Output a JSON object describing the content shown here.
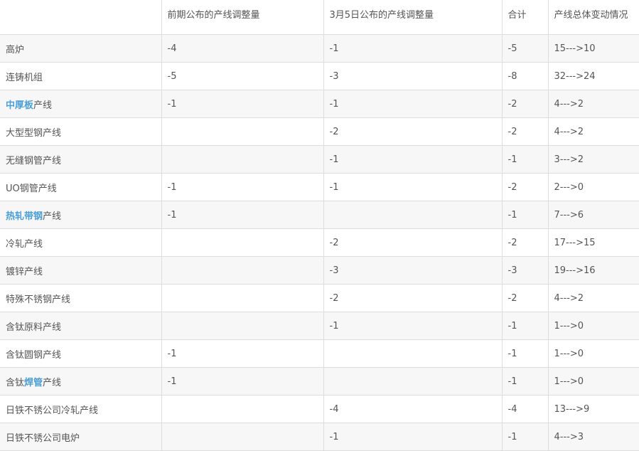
{
  "headers": [
    "",
    "前期公布的产线调整量",
    "3月5日公布的产线调整量",
    "合计",
    "产线总体变动情况"
  ],
  "rows": [
    {
      "pre": "",
      "link": "",
      "post": "高炉",
      "earlier": "-4",
      "mar5": "-1",
      "total": "-5",
      "change": "15--->10"
    },
    {
      "pre": "",
      "link": "",
      "post": "连铸机组",
      "earlier": "-5",
      "mar5": "-3",
      "total": "-8",
      "change": "32--->24"
    },
    {
      "pre": "",
      "link": "中厚板",
      "post": "产线",
      "earlier": "-1",
      "mar5": "-1",
      "total": "-2",
      "change": "4--->2"
    },
    {
      "pre": "",
      "link": "",
      "post": "大型型钢产线",
      "earlier": "",
      "mar5": "-2",
      "total": "-2",
      "change": "4--->2"
    },
    {
      "pre": "",
      "link": "",
      "post": "无缝钢管产线",
      "earlier": "",
      "mar5": "-1",
      "total": "-1",
      "change": "3--->2"
    },
    {
      "pre": "",
      "link": "",
      "post": "UO钢管产线",
      "earlier": "-1",
      "mar5": "-1",
      "total": "-2",
      "change": "2--->0"
    },
    {
      "pre": "",
      "link": "热轧带钢",
      "post": "产线",
      "earlier": "-1",
      "mar5": "",
      "total": "-1",
      "change": "7--->6"
    },
    {
      "pre": "",
      "link": "",
      "post": "冷轧产线",
      "earlier": "",
      "mar5": "-2",
      "total": "-2",
      "change": "17--->15"
    },
    {
      "pre": "",
      "link": "",
      "post": "镀锌产线",
      "earlier": "",
      "mar5": "-3",
      "total": "-3",
      "change": "19--->16"
    },
    {
      "pre": "",
      "link": "",
      "post": "特殊不锈钢产线",
      "earlier": "",
      "mar5": "-2",
      "total": "-2",
      "change": "4--->2"
    },
    {
      "pre": "",
      "link": "",
      "post": "含钛原料产线",
      "earlier": "",
      "mar5": "-1",
      "total": "-1",
      "change": "1--->0"
    },
    {
      "pre": "",
      "link": "",
      "post": "含钛圆钢产线",
      "earlier": "-1",
      "mar5": "",
      "total": "-1",
      "change": "1--->0"
    },
    {
      "pre": "含钛",
      "link": "焊管",
      "post": "产线",
      "earlier": "-1",
      "mar5": "",
      "total": "-1",
      "change": "1--->0"
    },
    {
      "pre": "",
      "link": "",
      "post": "日铁不锈公司冷轧产线",
      "earlier": "",
      "mar5": "-4",
      "total": "-4",
      "change": "13--->9"
    },
    {
      "pre": "",
      "link": "",
      "post": "日铁不锈公司电炉",
      "earlier": "",
      "mar5": "-1",
      "total": "-1",
      "change": "4--->3"
    }
  ]
}
